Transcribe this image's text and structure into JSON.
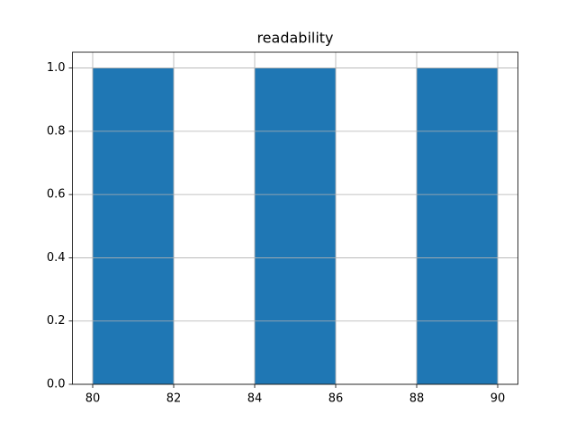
{
  "chart_data": {
    "type": "histogram",
    "title": "readability",
    "bins": [
      80,
      82,
      84,
      86,
      88,
      90
    ],
    "values": [
      1,
      0,
      1,
      0,
      1
    ],
    "color": "#1f77b4",
    "xlim": [
      79.5,
      90.5
    ],
    "xticks": [
      80,
      82,
      84,
      86,
      88,
      90
    ],
    "ylim": [
      0,
      1.05
    ],
    "yticks": [
      {
        "value": 0,
        "label": "0.0"
      },
      0.2,
      0.4,
      0.6,
      0.8,
      {
        "value": 1,
        "label": "1.0"
      }
    ],
    "grid": true
  }
}
